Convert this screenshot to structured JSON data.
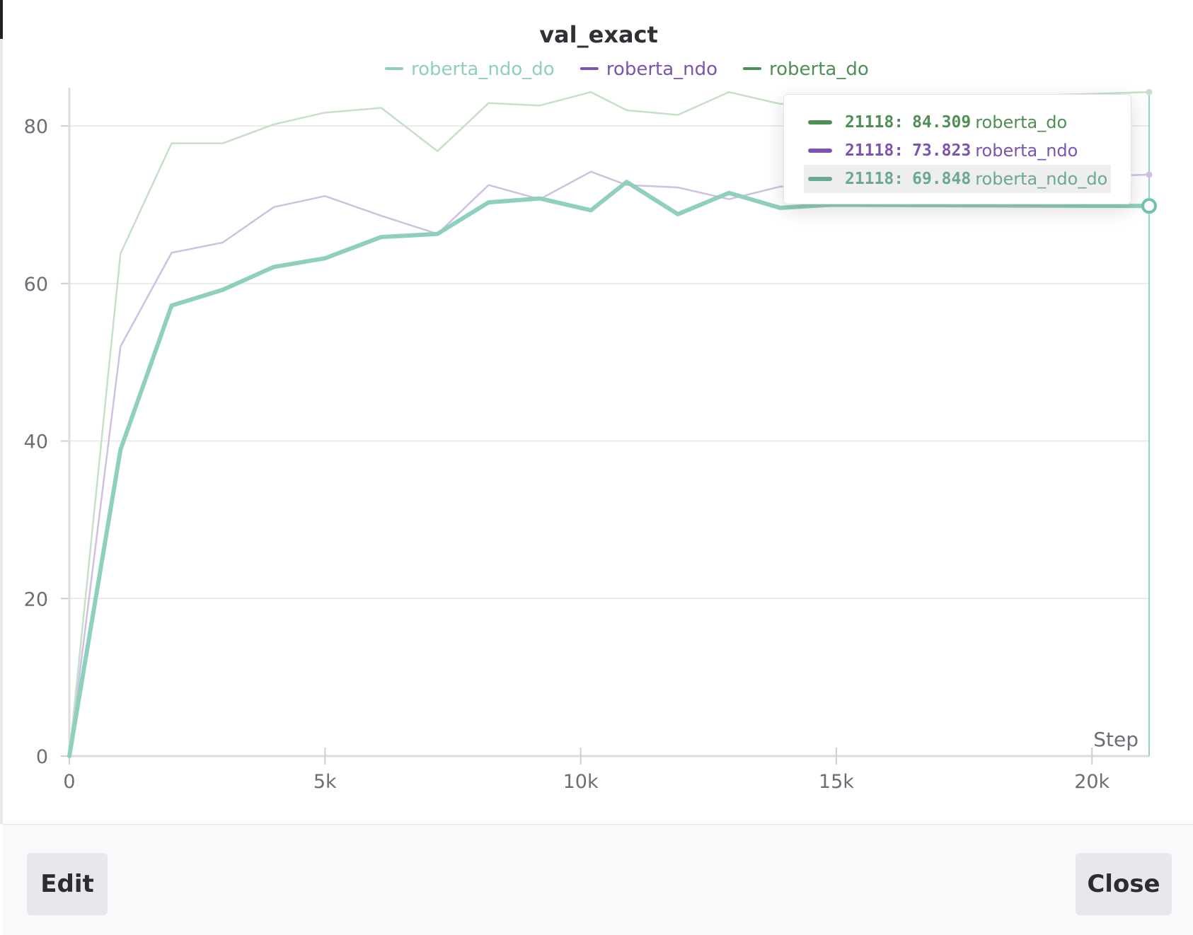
{
  "chart_data": {
    "type": "line",
    "title": "val_exact",
    "xlabel": "Step",
    "ylabel": "",
    "xlim": [
      0,
      21118
    ],
    "ylim": [
      0,
      84.5
    ],
    "x_ticks": [
      0,
      5000,
      10000,
      15000,
      20000
    ],
    "x_tick_labels": [
      "0",
      "5k",
      "10k",
      "15k",
      "20k"
    ],
    "y_ticks": [
      0,
      20,
      40,
      60,
      80
    ],
    "y_tick_labels": [
      "0",
      "20",
      "40",
      "60",
      "80"
    ],
    "grid": "horizontal",
    "legend_position": "top-center",
    "series": [
      {
        "name": "roberta_ndo_do",
        "color": "#8fcfbd",
        "legend_color": "#8fcfbd",
        "emphasized": true,
        "x": [
          0,
          1000,
          2000,
          3000,
          4000,
          5000,
          6100,
          7200,
          8200,
          9200,
          10200,
          10900,
          11900,
          12900,
          13900,
          14900,
          21118
        ],
        "y": [
          0,
          38.9,
          57.2,
          59.2,
          62.1,
          63.2,
          65.9,
          66.3,
          70.3,
          70.8,
          69.3,
          72.9,
          68.8,
          71.5,
          69.6,
          70.0,
          69.848
        ]
      },
      {
        "name": "roberta_ndo",
        "color": "#cfc0e3",
        "legend_color": "#7b54b0",
        "emphasized": false,
        "x": [
          0,
          1000,
          2000,
          3000,
          4000,
          5000,
          6100,
          7200,
          8200,
          9200,
          10200,
          10900,
          11900,
          12900,
          13900,
          21118
        ],
        "y": [
          0,
          52.0,
          63.9,
          65.2,
          69.7,
          71.1,
          68.6,
          66.3,
          72.5,
          70.7,
          74.2,
          72.5,
          72.2,
          70.7,
          72.3,
          73.823
        ]
      },
      {
        "name": "roberta_do",
        "color": "#c6e0c8",
        "legend_color": "#4f8f55",
        "emphasized": false,
        "x": [
          0,
          1000,
          2000,
          3000,
          4000,
          5000,
          6100,
          7200,
          8200,
          9200,
          10200,
          10900,
          11900,
          12900,
          13900,
          21118
        ],
        "y": [
          0,
          63.8,
          77.8,
          77.8,
          80.2,
          81.7,
          82.3,
          76.8,
          82.9,
          82.6,
          84.3,
          82.0,
          81.4,
          84.3,
          82.8,
          84.309
        ]
      }
    ],
    "hover_step": 21118,
    "tooltip": [
      {
        "step": "21118",
        "value": "84.309",
        "name": "roberta_do",
        "color": "#4f8f55",
        "highlight": false
      },
      {
        "step": "21118",
        "value": "73.823",
        "name": "roberta_ndo",
        "color": "#7b54b0",
        "highlight": false
      },
      {
        "step": "21118",
        "value": "69.848",
        "name": "roberta_ndo_do",
        "color": "#6aa895",
        "highlight": true
      }
    ]
  },
  "footer": {
    "edit_label": "Edit",
    "close_label": "Close"
  }
}
